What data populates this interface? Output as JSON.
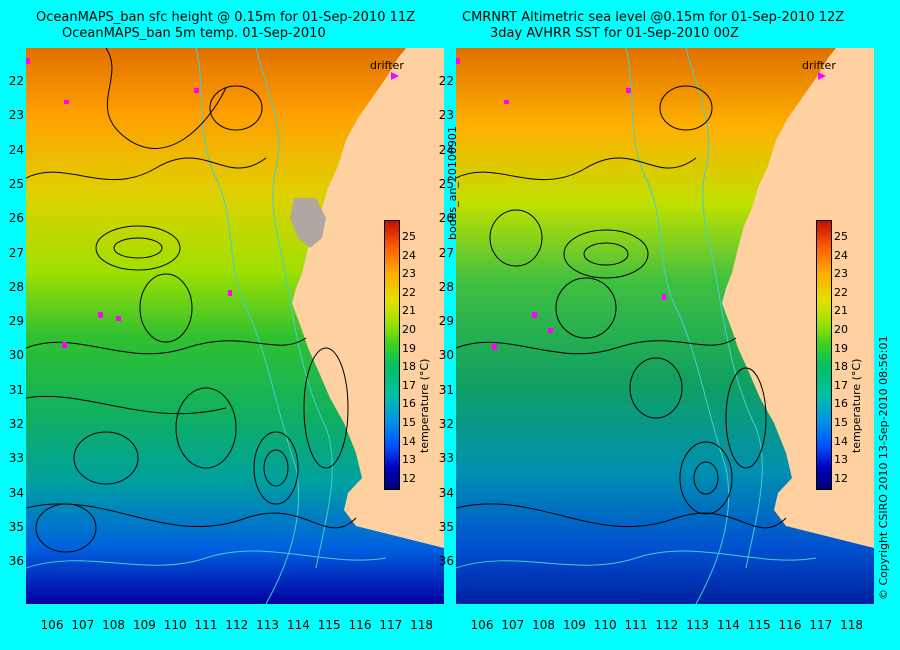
{
  "left_panel": {
    "title_line1": "OceanMAPS_ban sfc height @ 0.15m for 01-Sep-2010 11Z",
    "title_line2": "OceanMAPS_ban 5m temp. 01-Sep-2010",
    "drifter_label": "drifter",
    "colorbar_title": "temperature (°C)"
  },
  "right_panel": {
    "title_line1": "CMRNRT Altimetric sea level  @0.15m  for 01-Sep-2010 12Z",
    "title_line2": "3day AVHRR SST for 01-Sep-2010 00Z",
    "drifter_label": "drifter",
    "colorbar_title": "temperature (°C)"
  },
  "side_label": "bodas_an_20100901",
  "copyright": "© Copyright CSIRO 2010     13-Sep-2010 08:56:01",
  "latitude_ticks": [
    "22",
    "23",
    "24",
    "25",
    "26",
    "27",
    "28",
    "29",
    "30",
    "31",
    "32",
    "33",
    "34",
    "35",
    "36"
  ],
  "longitude_ticks": [
    "106",
    "107",
    "108",
    "109",
    "110",
    "111",
    "112",
    "113",
    "114",
    "115",
    "116",
    "117",
    "118"
  ],
  "colorbar_ticks": [
    "25",
    "24",
    "23",
    "22",
    "21",
    "20",
    "19",
    "18",
    "17",
    "16",
    "15",
    "14",
    "13",
    "12"
  ],
  "colors": {
    "background": "#00ffff",
    "land": "#ffd0a0",
    "drifter": "#ff00ff",
    "contour": "#000000",
    "bathymetry": "#40d0d0"
  }
}
